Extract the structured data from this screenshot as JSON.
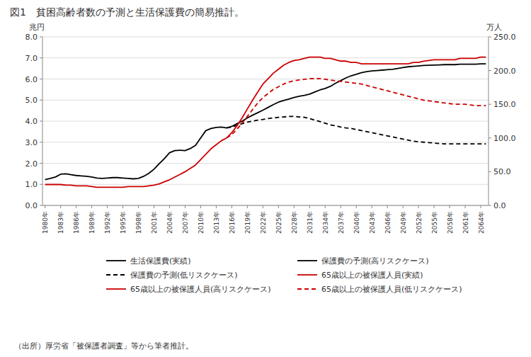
{
  "chart_data": {
    "type": "line",
    "title": "図1　貧困高齢者数の予測と生活保護費の簡易推計。",
    "source": "（出所）厚労省「被保護者調査」等から筆者推計。",
    "ylabel": "兆円",
    "y2label": "万人",
    "grid": true,
    "legend": "bottom",
    "xlim": [
      1979.5,
      2065.5
    ],
    "xticks": [
      {
        "value": 1980,
        "label": "1980年"
      },
      {
        "value": 1983,
        "label": "1983年"
      },
      {
        "value": 1986,
        "label": "1986年"
      },
      {
        "value": 1989,
        "label": "1989年"
      },
      {
        "value": 1992,
        "label": "1992年"
      },
      {
        "value": 1995,
        "label": "1995年"
      },
      {
        "value": 1998,
        "label": "1998年"
      },
      {
        "value": 2001,
        "label": "2001年"
      },
      {
        "value": 2004,
        "label": "2004年"
      },
      {
        "value": 2007,
        "label": "2007年"
      },
      {
        "value": 2010,
        "label": "2010年"
      },
      {
        "value": 2013,
        "label": "2013年"
      },
      {
        "value": 2016,
        "label": "2016年"
      },
      {
        "value": 2019,
        "label": "2019年"
      },
      {
        "value": 2022,
        "label": "2022年"
      },
      {
        "value": 2025,
        "label": "2025年"
      },
      {
        "value": 2028,
        "label": "2028年"
      },
      {
        "value": 2031,
        "label": "2031年"
      },
      {
        "value": 2034,
        "label": "2034年"
      },
      {
        "value": 2037,
        "label": "2037年"
      },
      {
        "value": 2040,
        "label": "2040年"
      },
      {
        "value": 2043,
        "label": "2043年"
      },
      {
        "value": 2046,
        "label": "2046年"
      },
      {
        "value": 2049,
        "label": "2049年"
      },
      {
        "value": 2052,
        "label": "2052年"
      },
      {
        "value": 2055,
        "label": "2055年"
      },
      {
        "value": 2058,
        "label": "2058年"
      },
      {
        "value": 2061,
        "label": "2061年"
      },
      {
        "value": 2064,
        "label": "2064年"
      }
    ],
    "ylim": [
      0.0,
      8.0
    ],
    "yticks": [
      {
        "value": 0,
        "label": "0.0"
      },
      {
        "value": 1,
        "label": "1.0"
      },
      {
        "value": 2,
        "label": "2.0"
      },
      {
        "value": 3,
        "label": "3.0"
      },
      {
        "value": 4,
        "label": "4.0"
      },
      {
        "value": 5,
        "label": "5.0"
      },
      {
        "value": 6,
        "label": "6.0"
      },
      {
        "value": 7,
        "label": "7.0"
      },
      {
        "value": 8,
        "label": "8.0"
      }
    ],
    "y2lim": [
      0.0,
      250.0
    ],
    "y2ticks": [
      {
        "value": 0,
        "label": "0.0"
      },
      {
        "value": 50,
        "label": "50.0"
      },
      {
        "value": 100,
        "label": "100.0"
      },
      {
        "value": 150,
        "label": "150.0"
      },
      {
        "value": 200,
        "label": "200.0"
      },
      {
        "value": 250,
        "label": "250.0"
      }
    ],
    "series": [
      {
        "name": "生活保護費(実績)",
        "color": "#000000",
        "line_style": "solid",
        "axis": "y",
        "x": [
          1980,
          1981,
          1982,
          1983,
          1984,
          1985,
          1986,
          1987,
          1988,
          1989,
          1990,
          1991,
          1992,
          1993,
          1994,
          1995,
          1996,
          1997,
          1998,
          1999,
          2000,
          2001,
          2002,
          2003,
          2004,
          2005,
          2006,
          2007,
          2008,
          2009,
          2010,
          2011,
          2012,
          2013,
          2014,
          2015
        ],
        "values": [
          1.22,
          1.28,
          1.35,
          1.48,
          1.5,
          1.46,
          1.42,
          1.4,
          1.38,
          1.35,
          1.3,
          1.28,
          1.3,
          1.32,
          1.32,
          1.3,
          1.28,
          1.26,
          1.28,
          1.38,
          1.52,
          1.72,
          1.98,
          2.22,
          2.5,
          2.6,
          2.62,
          2.6,
          2.7,
          2.85,
          3.2,
          3.55,
          3.65,
          3.7,
          3.72,
          3.68
        ]
      },
      {
        "name": "保護費の予測(高リスクケース)",
        "color": "#000000",
        "line_style": "solid",
        "axis": "y",
        "x": [
          2015,
          2016,
          2017,
          2018,
          2019,
          2020,
          2021,
          2022,
          2023,
          2024,
          2025,
          2026,
          2027,
          2028,
          2029,
          2030,
          2031,
          2032,
          2033,
          2034,
          2035,
          2036,
          2037,
          2038,
          2039,
          2040,
          2041,
          2042,
          2043,
          2044,
          2045,
          2046,
          2047,
          2048,
          2049,
          2050,
          2051,
          2052,
          2053,
          2054,
          2055,
          2056,
          2057,
          2058,
          2059,
          2060,
          2061,
          2062,
          2063,
          2064,
          2065
        ],
        "values": [
          3.68,
          3.75,
          3.88,
          4.0,
          4.15,
          4.28,
          4.4,
          4.52,
          4.65,
          4.78,
          4.9,
          4.98,
          5.05,
          5.12,
          5.18,
          5.22,
          5.28,
          5.38,
          5.48,
          5.55,
          5.65,
          5.8,
          5.92,
          6.05,
          6.15,
          6.22,
          6.3,
          6.35,
          6.38,
          6.4,
          6.42,
          6.44,
          6.46,
          6.5,
          6.54,
          6.58,
          6.6,
          6.62,
          6.64,
          6.65,
          6.66,
          6.67,
          6.68,
          6.68,
          6.68,
          6.7,
          6.7,
          6.7,
          6.7,
          6.72,
          6.72
        ]
      },
      {
        "name": "保護費の予測(低リスクケース)",
        "color": "#000000",
        "line_style": "dashed",
        "axis": "y",
        "x": [
          2015,
          2016,
          2017,
          2018,
          2019,
          2020,
          2021,
          2022,
          2023,
          2024,
          2025,
          2026,
          2027,
          2028,
          2029,
          2030,
          2031,
          2032,
          2033,
          2034,
          2035,
          2036,
          2037,
          2038,
          2039,
          2040,
          2041,
          2042,
          2043,
          2044,
          2045,
          2046,
          2047,
          2048,
          2049,
          2050,
          2051,
          2052,
          2053,
          2054,
          2055,
          2056,
          2057,
          2058,
          2059,
          2060,
          2061,
          2062,
          2063,
          2064,
          2065
        ],
        "values": [
          3.68,
          3.72,
          3.8,
          3.88,
          3.95,
          4.0,
          4.05,
          4.08,
          4.12,
          4.15,
          4.18,
          4.2,
          4.22,
          4.22,
          4.2,
          4.18,
          4.12,
          4.05,
          3.98,
          3.9,
          3.82,
          3.78,
          3.72,
          3.68,
          3.65,
          3.6,
          3.55,
          3.5,
          3.45,
          3.4,
          3.35,
          3.3,
          3.25,
          3.2,
          3.15,
          3.1,
          3.05,
          3.02,
          3.0,
          2.98,
          2.96,
          2.94,
          2.92,
          2.92,
          2.92,
          2.92,
          2.92,
          2.92,
          2.92,
          2.92,
          2.92
        ]
      },
      {
        "name": "65歳以上の被保護人員(実績)",
        "color": "#cc0000",
        "line_style": "solid",
        "axis": "y2",
        "x": [
          1980,
          1981,
          1982,
          1983,
          1984,
          1985,
          1986,
          1987,
          1988,
          1989,
          1990,
          1991,
          1992,
          1993,
          1994,
          1995,
          1996,
          1997,
          1998,
          1999,
          2000,
          2001,
          2002,
          2003,
          2004,
          2005,
          2006,
          2007,
          2008,
          2009,
          2010,
          2011,
          2012,
          2013,
          2014,
          2015
        ],
        "values": [
          31,
          31,
          31,
          31,
          30,
          30,
          29,
          29,
          29,
          28,
          27,
          27,
          27,
          27,
          27,
          27,
          28,
          28,
          28,
          28,
          29,
          30,
          32,
          35,
          38,
          42,
          46,
          50,
          55,
          60,
          68,
          76,
          84,
          90,
          96,
          100
        ]
      },
      {
        "name": "65歳以上の被保護人員(高リスクケース)",
        "color": "#cc0000",
        "line_style": "solid",
        "axis": "y2",
        "x": [
          2015,
          2016,
          2017,
          2018,
          2019,
          2020,
          2021,
          2022,
          2023,
          2024,
          2025,
          2026,
          2027,
          2028,
          2029,
          2030,
          2031,
          2032,
          2033,
          2034,
          2035,
          2036,
          2037,
          2038,
          2039,
          2040,
          2041,
          2042,
          2043,
          2044,
          2045,
          2046,
          2047,
          2048,
          2049,
          2050,
          2051,
          2052,
          2053,
          2054,
          2055,
          2056,
          2057,
          2058,
          2059,
          2060,
          2061,
          2062,
          2063,
          2064,
          2065
        ],
        "values": [
          100,
          108,
          118,
          130,
          143,
          156,
          168,
          180,
          188,
          196,
          202,
          208,
          212,
          215,
          216,
          218,
          220,
          220,
          220,
          218,
          218,
          216,
          214,
          214,
          212,
          212,
          210,
          210,
          210,
          210,
          210,
          210,
          210,
          210,
          210,
          210,
          212,
          212,
          214,
          215,
          216,
          216,
          216,
          216,
          216,
          218,
          218,
          218,
          218,
          220,
          220
        ]
      },
      {
        "name": "65歳以上の被保護人員(低リスクケース)",
        "color": "#cc0000",
        "line_style": "dashed",
        "axis": "y2",
        "x": [
          2015,
          2016,
          2017,
          2018,
          2019,
          2020,
          2021,
          2022,
          2023,
          2024,
          2025,
          2026,
          2027,
          2028,
          2029,
          2030,
          2031,
          2032,
          2033,
          2034,
          2035,
          2036,
          2037,
          2038,
          2039,
          2040,
          2041,
          2042,
          2043,
          2044,
          2045,
          2046,
          2047,
          2048,
          2049,
          2050,
          2051,
          2052,
          2053,
          2054,
          2055,
          2056,
          2057,
          2058,
          2059,
          2060,
          2061,
          2062,
          2063,
          2064,
          2065
        ],
        "values": [
          100,
          105,
          113,
          122,
          132,
          142,
          152,
          160,
          166,
          172,
          176,
          180,
          183,
          185,
          186,
          187,
          188,
          188,
          188,
          187,
          186,
          185,
          184,
          183,
          182,
          181,
          180,
          178,
          176,
          174,
          172,
          170,
          168,
          166,
          164,
          162,
          160,
          158,
          156,
          155,
          154,
          153,
          152,
          151,
          150,
          150,
          150,
          149,
          148,
          148,
          148
        ]
      }
    ]
  }
}
